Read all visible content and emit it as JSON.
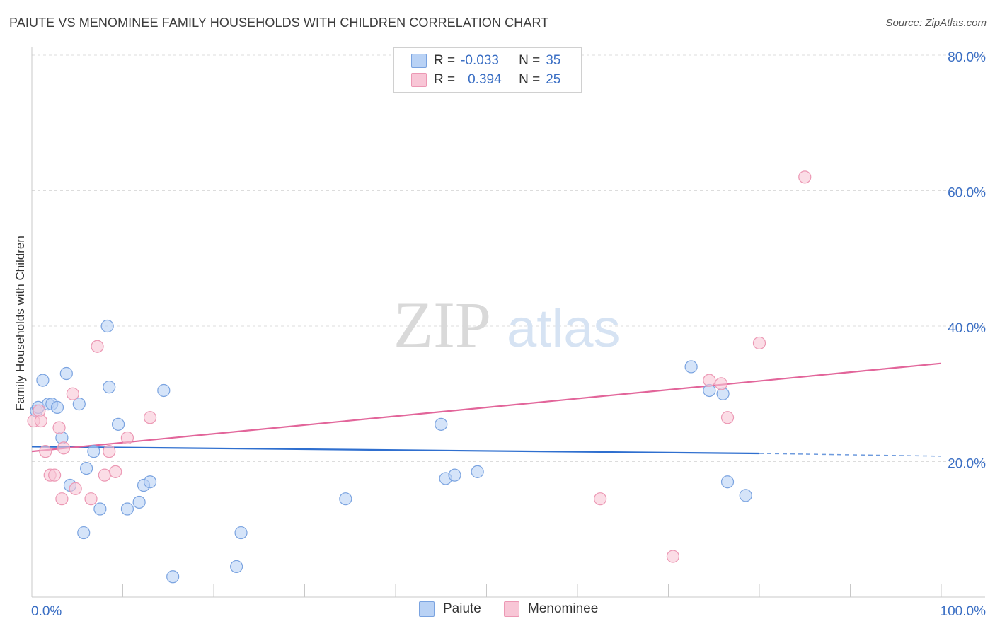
{
  "title": "PAIUTE VS MENOMINEE FAMILY HOUSEHOLDS WITH CHILDREN CORRELATION CHART",
  "source": "Source: ZipAtlas.com",
  "watermark": {
    "zip": "ZIP",
    "atlas": "atlas"
  },
  "legend": {
    "rows": [
      {
        "r_label": "R =",
        "r_value": "-0.033",
        "n_label": "N =",
        "n_value": "35"
      },
      {
        "r_label": "R =",
        "r_value": "0.394",
        "n_label": "N =",
        "n_value": "25"
      }
    ]
  },
  "colors": {
    "paiute_fill": "#b9d2f5",
    "paiute_stroke": "#7aa3e0",
    "paiute_line": "#2f6fcf",
    "menominee_fill": "#f8c6d6",
    "menominee_stroke": "#ec98b4",
    "menominee_line": "#e2659a",
    "tick_label": "#3b6fc4"
  },
  "chart_data": {
    "type": "scatter",
    "ylabel": "Family Households with Children",
    "xlim": [
      0,
      100
    ],
    "ylim": [
      0,
      80
    ],
    "x_tick_labels": [
      "0.0%",
      "100.0%"
    ],
    "y_ticks": [
      20,
      40,
      60,
      80
    ],
    "y_tick_labels": [
      "20.0%",
      "40.0%",
      "60.0%",
      "80.0%"
    ],
    "grid": true,
    "legend_position": "top-center",
    "series": [
      {
        "name": "Paiute",
        "points": [
          [
            0.5,
            27.5
          ],
          [
            0.7,
            28.0
          ],
          [
            1.2,
            32.0
          ],
          [
            1.8,
            28.5
          ],
          [
            2.2,
            28.5
          ],
          [
            2.8,
            28.0
          ],
          [
            3.3,
            23.5
          ],
          [
            3.8,
            33.0
          ],
          [
            4.2,
            16.5
          ],
          [
            5.2,
            28.5
          ],
          [
            5.7,
            9.5
          ],
          [
            6.0,
            19.0
          ],
          [
            6.8,
            21.5
          ],
          [
            7.5,
            13.0
          ],
          [
            8.3,
            40.0
          ],
          [
            8.5,
            31.0
          ],
          [
            9.5,
            25.5
          ],
          [
            10.5,
            13.0
          ],
          [
            11.8,
            14.0
          ],
          [
            12.3,
            16.5
          ],
          [
            13.0,
            17.0
          ],
          [
            14.5,
            30.5
          ],
          [
            15.5,
            3.0
          ],
          [
            22.5,
            4.5
          ],
          [
            23.0,
            9.5
          ],
          [
            34.5,
            14.5
          ],
          [
            45.0,
            25.5
          ],
          [
            45.5,
            17.5
          ],
          [
            46.5,
            18.0
          ],
          [
            49.0,
            18.5
          ],
          [
            72.5,
            34.0
          ],
          [
            74.5,
            30.5
          ],
          [
            76.0,
            30.0
          ],
          [
            76.5,
            17.0
          ],
          [
            78.5,
            15.0
          ]
        ],
        "trend": {
          "x": [
            0,
            80
          ],
          "y": [
            22.2,
            21.2
          ],
          "dashed_to": [
            100,
            20.8
          ]
        }
      },
      {
        "name": "Menominee",
        "points": [
          [
            0.2,
            26.0
          ],
          [
            0.8,
            27.5
          ],
          [
            1.0,
            26.0
          ],
          [
            1.5,
            21.5
          ],
          [
            2.0,
            18.0
          ],
          [
            2.5,
            18.0
          ],
          [
            3.0,
            25.0
          ],
          [
            3.3,
            14.5
          ],
          [
            3.5,
            22.0
          ],
          [
            4.5,
            30.0
          ],
          [
            4.8,
            16.0
          ],
          [
            6.5,
            14.5
          ],
          [
            7.2,
            37.0
          ],
          [
            8.0,
            18.0
          ],
          [
            8.5,
            21.5
          ],
          [
            9.2,
            18.5
          ],
          [
            10.5,
            23.5
          ],
          [
            13.0,
            26.5
          ],
          [
            62.5,
            14.5
          ],
          [
            70.5,
            6.0
          ],
          [
            74.5,
            32.0
          ],
          [
            75.8,
            31.5
          ],
          [
            76.5,
            26.5
          ],
          [
            80.0,
            37.5
          ],
          [
            85.0,
            62.0
          ]
        ],
        "trend": {
          "x": [
            0,
            100
          ],
          "y": [
            21.5,
            34.5
          ]
        }
      }
    ]
  }
}
